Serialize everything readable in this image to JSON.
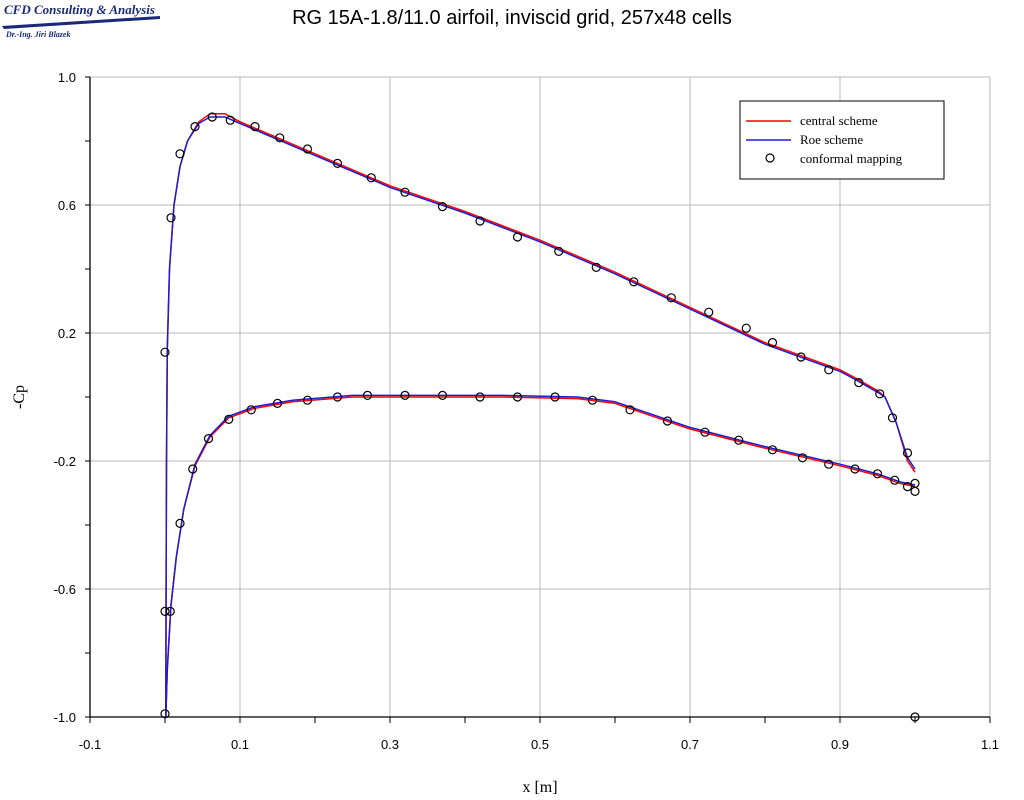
{
  "logo": {
    "company": "CFD Consulting & Analysis",
    "author": "Dr.-Ing. Jiri Blazek"
  },
  "chart_data": {
    "type": "line",
    "title": "RG 15A-1.8/11.0 airfoil, inviscid grid, 257x48 cells",
    "xlabel": "x [m]",
    "ylabel": "-Cp",
    "xlim": [
      -0.1,
      1.1
    ],
    "ylim": [
      -1.0,
      1.0
    ],
    "xticks": [
      -0.1,
      0.1,
      0.3,
      0.5,
      0.7,
      0.9,
      1.1
    ],
    "yticks": [
      1.0,
      0.6,
      0.2,
      -0.2,
      -0.6,
      -1.0
    ],
    "xtick_labels": [
      "-0.1",
      "0.1",
      "0.3",
      "0.5",
      "0.7",
      "0.9",
      "1.1"
    ],
    "ytick_labels": [
      "1.0",
      "0.6",
      "0.2",
      "-0.2",
      "-0.6",
      "-1.0"
    ],
    "grid": true,
    "legend_position": "top-right",
    "series": [
      {
        "name": "central scheme",
        "kind": "line",
        "color": "#ff0000",
        "upper": [
          [
            1.0,
            -0.235
          ],
          [
            0.99,
            -0.2
          ],
          [
            0.975,
            -0.08
          ],
          [
            0.96,
            0.0
          ],
          [
            0.95,
            0.02
          ],
          [
            0.92,
            0.06
          ],
          [
            0.9,
            0.085
          ],
          [
            0.8,
            0.17
          ],
          [
            0.7,
            0.28
          ],
          [
            0.6,
            0.39
          ],
          [
            0.5,
            0.49
          ],
          [
            0.4,
            0.58
          ],
          [
            0.3,
            0.66
          ],
          [
            0.2,
            0.76
          ],
          [
            0.15,
            0.81
          ],
          [
            0.1,
            0.86
          ],
          [
            0.08,
            0.885
          ],
          [
            0.06,
            0.885
          ],
          [
            0.045,
            0.86
          ],
          [
            0.03,
            0.8
          ],
          [
            0.02,
            0.72
          ],
          [
            0.012,
            0.6
          ],
          [
            0.006,
            0.4
          ],
          [
            0.003,
            0.15
          ],
          [
            0.002,
            -0.2
          ],
          [
            0.0015,
            -0.6
          ],
          [
            0.001,
            -1.0
          ]
        ],
        "lower": [
          [
            0.001,
            -1.0
          ],
          [
            0.003,
            -0.85
          ],
          [
            0.008,
            -0.65
          ],
          [
            0.015,
            -0.5
          ],
          [
            0.025,
            -0.35
          ],
          [
            0.04,
            -0.215
          ],
          [
            0.06,
            -0.125
          ],
          [
            0.085,
            -0.065
          ],
          [
            0.12,
            -0.035
          ],
          [
            0.17,
            -0.015
          ],
          [
            0.25,
            0.0
          ],
          [
            0.35,
            0.0
          ],
          [
            0.45,
            0.0
          ],
          [
            0.55,
            -0.005
          ],
          [
            0.6,
            -0.02
          ],
          [
            0.65,
            -0.06
          ],
          [
            0.7,
            -0.1
          ],
          [
            0.8,
            -0.16
          ],
          [
            0.9,
            -0.215
          ],
          [
            0.95,
            -0.245
          ],
          [
            0.98,
            -0.27
          ],
          [
            1.0,
            -0.28
          ]
        ]
      },
      {
        "name": "Roe scheme",
        "kind": "line",
        "color": "#1c1cd0",
        "upper": [
          [
            1.0,
            -0.225
          ],
          [
            0.99,
            -0.19
          ],
          [
            0.975,
            -0.08
          ],
          [
            0.96,
            0.0
          ],
          [
            0.95,
            0.015
          ],
          [
            0.92,
            0.055
          ],
          [
            0.9,
            0.08
          ],
          [
            0.8,
            0.165
          ],
          [
            0.7,
            0.275
          ],
          [
            0.6,
            0.385
          ],
          [
            0.5,
            0.485
          ],
          [
            0.4,
            0.575
          ],
          [
            0.3,
            0.655
          ],
          [
            0.2,
            0.755
          ],
          [
            0.15,
            0.805
          ],
          [
            0.1,
            0.855
          ],
          [
            0.08,
            0.875
          ],
          [
            0.06,
            0.875
          ],
          [
            0.045,
            0.855
          ],
          [
            0.03,
            0.8
          ],
          [
            0.02,
            0.72
          ],
          [
            0.012,
            0.6
          ],
          [
            0.006,
            0.4
          ],
          [
            0.003,
            0.15
          ],
          [
            0.002,
            -0.2
          ],
          [
            0.0015,
            -0.6
          ],
          [
            0.001,
            -1.0
          ]
        ],
        "lower": [
          [
            0.001,
            -1.0
          ],
          [
            0.003,
            -0.85
          ],
          [
            0.008,
            -0.65
          ],
          [
            0.015,
            -0.5
          ],
          [
            0.025,
            -0.35
          ],
          [
            0.04,
            -0.21
          ],
          [
            0.06,
            -0.12
          ],
          [
            0.085,
            -0.06
          ],
          [
            0.12,
            -0.03
          ],
          [
            0.17,
            -0.01
          ],
          [
            0.25,
            0.005
          ],
          [
            0.35,
            0.005
          ],
          [
            0.45,
            0.005
          ],
          [
            0.55,
            0.0
          ],
          [
            0.6,
            -0.015
          ],
          [
            0.65,
            -0.055
          ],
          [
            0.7,
            -0.095
          ],
          [
            0.8,
            -0.155
          ],
          [
            0.9,
            -0.21
          ],
          [
            0.95,
            -0.24
          ],
          [
            0.98,
            -0.265
          ],
          [
            1.0,
            -0.275
          ]
        ]
      },
      {
        "name": "conformal mapping",
        "kind": "markers",
        "color": "#000000",
        "points": [
          [
            0.0,
            -0.99
          ],
          [
            0.0,
            -0.67
          ],
          [
            0.007,
            -0.67
          ],
          [
            0.0,
            0.14
          ],
          [
            0.008,
            0.56
          ],
          [
            0.02,
            0.76
          ],
          [
            0.04,
            0.845
          ],
          [
            0.063,
            0.875
          ],
          [
            0.087,
            0.865
          ],
          [
            0.12,
            0.845
          ],
          [
            0.153,
            0.81
          ],
          [
            0.19,
            0.775
          ],
          [
            0.23,
            0.73
          ],
          [
            0.275,
            0.685
          ],
          [
            0.32,
            0.64
          ],
          [
            0.37,
            0.595
          ],
          [
            0.42,
            0.55
          ],
          [
            0.47,
            0.5
          ],
          [
            0.525,
            0.455
          ],
          [
            0.575,
            0.405
          ],
          [
            0.625,
            0.36
          ],
          [
            0.675,
            0.31
          ],
          [
            0.725,
            0.265
          ],
          [
            0.775,
            0.215
          ],
          [
            0.81,
            0.17
          ],
          [
            0.848,
            0.125
          ],
          [
            0.885,
            0.085
          ],
          [
            0.925,
            0.045
          ],
          [
            0.953,
            0.01
          ],
          [
            0.97,
            -0.065
          ],
          [
            0.99,
            -0.175
          ],
          [
            1.0,
            -0.27
          ],
          [
            1.0,
            -0.295
          ],
          [
            1.0,
            -1.0
          ],
          [
            0.02,
            -0.395
          ],
          [
            0.037,
            -0.225
          ],
          [
            0.058,
            -0.13
          ],
          [
            0.085,
            -0.07
          ],
          [
            0.115,
            -0.04
          ],
          [
            0.15,
            -0.02
          ],
          [
            0.19,
            -0.01
          ],
          [
            0.23,
            0.0
          ],
          [
            0.27,
            0.005
          ],
          [
            0.32,
            0.005
          ],
          [
            0.37,
            0.005
          ],
          [
            0.42,
            0.0
          ],
          [
            0.47,
            0.0
          ],
          [
            0.52,
            0.0
          ],
          [
            0.57,
            -0.01
          ],
          [
            0.62,
            -0.04
          ],
          [
            0.67,
            -0.075
          ],
          [
            0.72,
            -0.11
          ],
          [
            0.765,
            -0.135
          ],
          [
            0.81,
            -0.165
          ],
          [
            0.85,
            -0.19
          ],
          [
            0.885,
            -0.21
          ],
          [
            0.92,
            -0.225
          ],
          [
            0.95,
            -0.24
          ],
          [
            0.973,
            -0.26
          ],
          [
            0.99,
            -0.28
          ]
        ]
      }
    ]
  }
}
